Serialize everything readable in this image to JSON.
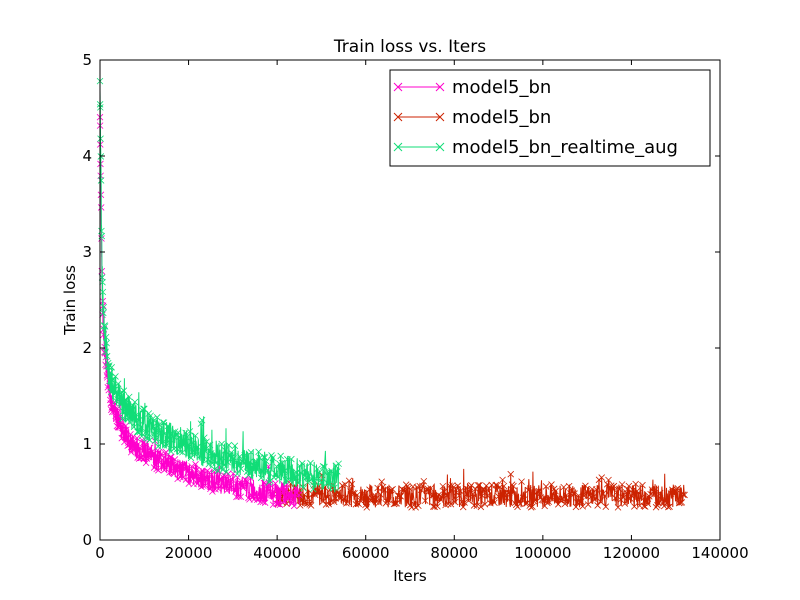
{
  "chart_data": {
    "type": "line",
    "title": "Train loss  vs. Iters",
    "xlabel": "Iters",
    "ylabel": "Train loss",
    "xlim": [
      0,
      140000
    ],
    "ylim": [
      0,
      5
    ],
    "xticks": [
      0,
      20000,
      40000,
      60000,
      80000,
      100000,
      120000,
      140000
    ],
    "xtick_labels": [
      "0",
      "20000",
      "40000",
      "60000",
      "80000",
      "100000",
      "120000",
      "140000"
    ],
    "yticks": [
      0,
      1,
      2,
      3,
      4,
      5
    ],
    "ytick_labels": [
      "0",
      "1",
      "2",
      "3",
      "4",
      "5"
    ],
    "grid": false,
    "legend_position": "top-right",
    "marker": "x",
    "series": [
      {
        "name": "model5_bn",
        "color": "#ff00cc",
        "x": [
          0,
          500,
          1000,
          2000,
          3000,
          5000,
          7000,
          10000,
          15000,
          20000,
          25000,
          30000,
          35000,
          40000,
          45000
        ],
        "y": [
          4.4,
          2.5,
          2.0,
          1.55,
          1.35,
          1.15,
          1.0,
          0.92,
          0.8,
          0.7,
          0.62,
          0.57,
          0.52,
          0.48,
          0.45
        ]
      },
      {
        "name": "model5_bn",
        "color": "#cc2200",
        "x": [
          40000,
          50000,
          60000,
          70000,
          80000,
          90000,
          100000,
          110000,
          120000,
          132000
        ],
        "y": [
          0.48,
          0.47,
          0.46,
          0.46,
          0.46,
          0.46,
          0.46,
          0.46,
          0.46,
          0.46
        ]
      },
      {
        "name": "model5_bn_realtime_aug",
        "color": "#11dd77",
        "x": [
          0,
          500,
          1000,
          2000,
          3000,
          5000,
          7000,
          10000,
          15000,
          20000,
          25000,
          30000,
          35000,
          40000,
          45000,
          50000,
          54000
        ],
        "y": [
          4.75,
          2.6,
          2.15,
          1.75,
          1.6,
          1.42,
          1.32,
          1.22,
          1.08,
          0.98,
          0.9,
          0.84,
          0.78,
          0.73,
          0.69,
          0.66,
          0.64
        ]
      }
    ]
  }
}
